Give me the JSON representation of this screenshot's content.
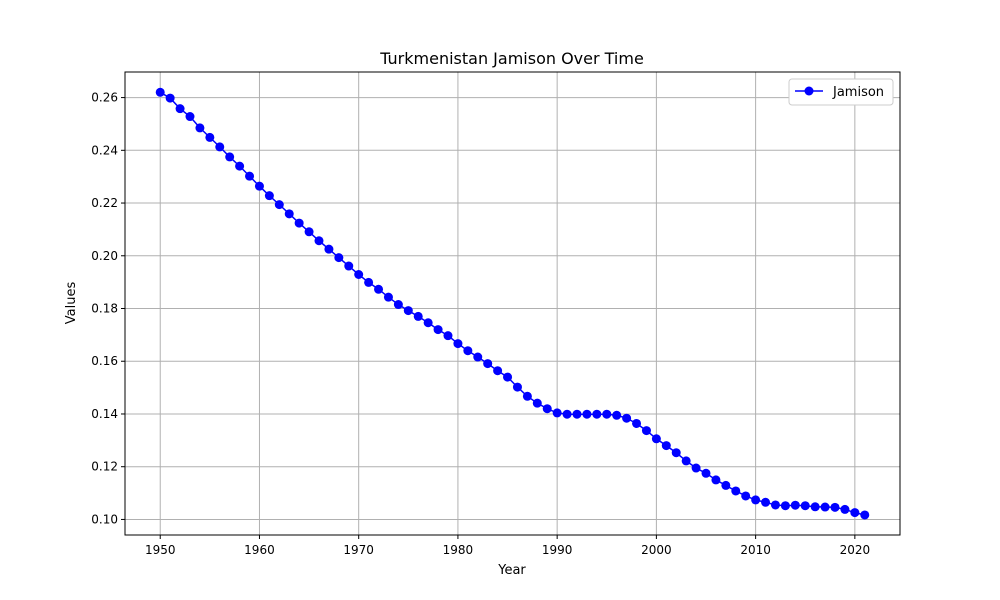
{
  "chart_data": {
    "type": "line",
    "title": "Turkmenistan Jamison Over Time",
    "xlabel": "Year",
    "ylabel": "Values",
    "xlim": [
      1946.45,
      2024.55
    ],
    "ylim": [
      0.0941,
      0.2697
    ],
    "xticks": [
      1950,
      1960,
      1970,
      1980,
      1990,
      2000,
      2010,
      2020
    ],
    "yticks": [
      0.1,
      0.12,
      0.14,
      0.16,
      0.18,
      0.2,
      0.22,
      0.24,
      0.26
    ],
    "grid": true,
    "legend_position": "top-right",
    "x": [
      1950,
      1951,
      1952,
      1953,
      1954,
      1955,
      1956,
      1957,
      1958,
      1959,
      1960,
      1961,
      1962,
      1963,
      1964,
      1965,
      1966,
      1967,
      1968,
      1969,
      1970,
      1971,
      1972,
      1973,
      1974,
      1975,
      1976,
      1977,
      1978,
      1979,
      1980,
      1981,
      1982,
      1983,
      1984,
      1985,
      1986,
      1987,
      1988,
      1989,
      1990,
      1991,
      1992,
      1993,
      1994,
      1995,
      1996,
      1997,
      1998,
      1999,
      2000,
      2001,
      2002,
      2003,
      2004,
      2005,
      2006,
      2007,
      2008,
      2009,
      2010,
      2011,
      2012,
      2013,
      2014,
      2015,
      2016,
      2017,
      2018,
      2019,
      2020,
      2021
    ],
    "series": [
      {
        "name": "Jamison",
        "color": "#0000ff",
        "marker": "circle",
        "values": [
          0.262,
          0.2598,
          0.2558,
          0.2528,
          0.2485,
          0.2449,
          0.2413,
          0.2375,
          0.234,
          0.2302,
          0.2264,
          0.2228,
          0.2194,
          0.2159,
          0.2124,
          0.2091,
          0.2057,
          0.2025,
          0.1993,
          0.1961,
          0.1929,
          0.1899,
          0.1873,
          0.1843,
          0.1815,
          0.1792,
          0.177,
          0.1746,
          0.172,
          0.1697,
          0.1667,
          0.164,
          0.1616,
          0.1591,
          0.1564,
          0.154,
          0.1502,
          0.1467,
          0.1441,
          0.142,
          0.1404,
          0.1399,
          0.1399,
          0.1399,
          0.1399,
          0.1399,
          0.1395,
          0.1384,
          0.1364,
          0.1337,
          0.1306,
          0.128,
          0.1253,
          0.1222,
          0.1195,
          0.1175,
          0.115,
          0.1129,
          0.1108,
          0.1089,
          0.1074,
          0.1065,
          0.1055,
          0.1052,
          0.1054,
          0.1052,
          0.1048,
          0.1047,
          0.1046,
          0.1038,
          0.1026,
          0.1017
        ]
      }
    ]
  }
}
